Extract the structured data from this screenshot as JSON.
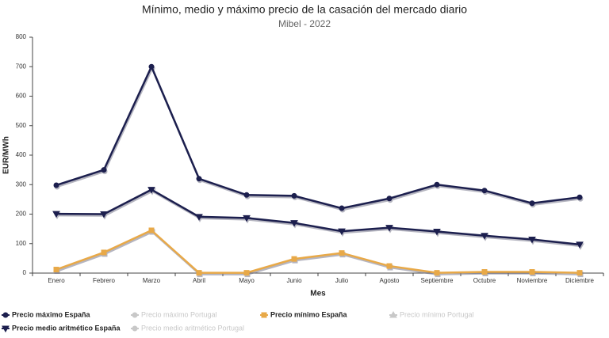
{
  "chart_data": {
    "type": "line",
    "title": "Mínimo, medio y máximo precio de la casación del mercado diario",
    "subtitle": "Mibel - 2022",
    "x_label": "Mes",
    "y_label": "EUR/MWh",
    "categories": [
      "Enero",
      "Febrero",
      "Marzo",
      "Abril",
      "Mayo",
      "Junio",
      "Julio",
      "Agosto",
      "Septiembre",
      "Octubre",
      "Noviembre",
      "Diciembre"
    ],
    "ylim": [
      0,
      800
    ],
    "yticks": [
      0,
      100,
      200,
      300,
      400,
      500,
      600,
      700,
      800
    ],
    "series": [
      {
        "name": "Precio máximo España",
        "color": "#1c1f4e",
        "marker": "circle",
        "values": [
          298,
          350,
          700,
          320,
          265,
          262,
          220,
          253,
          300,
          280,
          237,
          257
        ]
      },
      {
        "name": "Precio máximo Portugal",
        "color": "#c8c8c8",
        "marker": "circle",
        "visible": false
      },
      {
        "name": "Precio mínimo España",
        "color": "#e8a948",
        "marker": "square",
        "values": [
          12,
          70,
          145,
          1,
          1,
          48,
          68,
          24,
          1,
          4,
          4,
          1
        ]
      },
      {
        "name": "Precio mínimo Portugal",
        "color": "#c8c8c8",
        "marker": "triangle",
        "visible": false
      },
      {
        "name": "Precio medio aritmético España",
        "color": "#1c1f4e",
        "marker": "triangle-down",
        "values": [
          201,
          200,
          283,
          191,
          187,
          170,
          142,
          154,
          141,
          127,
          114,
          97
        ]
      },
      {
        "name": "Precio medio aritmético Portugal",
        "color": "#c8c8c8",
        "marker": "circle",
        "visible": false
      }
    ]
  }
}
